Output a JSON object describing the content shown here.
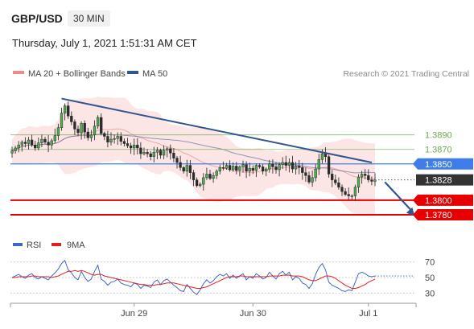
{
  "header": {
    "symbol": "GBP/USD",
    "timeframe": "30 MIN",
    "timestamp": "Thursday, July 1, 2021 1:51:31 AM CET"
  },
  "credit": "Research © 2021 Trading Central",
  "colors": {
    "bollinger": "#f08a8a",
    "ma50": "#31558f",
    "green_level": "#6aa84f",
    "blue_level": "#3f7ee8",
    "red_level": "#e60000",
    "current_label": "#333333",
    "rsi": "#3f66c9",
    "rsi_ma": "#e02020"
  },
  "chart_data": [
    {
      "type": "candlestick",
      "title": "",
      "legend": [
        {
          "name": "MA 20 + Bollinger Bands",
          "color": "#f08a8a"
        },
        {
          "name": "MA 50",
          "color": "#31558f"
        }
      ],
      "x_tick_labels": [
        "Jun 29",
        "Jun 30",
        "Jul 1"
      ],
      "ylim": [
        1.376,
        1.3965
      ],
      "levels": [
        {
          "value": 1.389,
          "label": "1.3890",
          "kind": "resistance-minor",
          "color": "#6aa84f"
        },
        {
          "value": 1.387,
          "label": "1.3870",
          "kind": "resistance-minor",
          "color": "#6aa84f"
        },
        {
          "value": 1.385,
          "label": "1.3850",
          "kind": "pivot",
          "color": "#3f7ee8"
        },
        {
          "value": 1.3828,
          "label": "1.3828",
          "kind": "last-price",
          "color": "#333333"
        },
        {
          "value": 1.38,
          "label": "1.3800",
          "kind": "support",
          "color": "#e60000"
        },
        {
          "value": 1.378,
          "label": "1.3780",
          "kind": "support",
          "color": "#e60000"
        }
      ],
      "trendline": {
        "from": {
          "bar": 15,
          "price": 1.394
        },
        "to": {
          "bar": 109,
          "price": 1.3852
        }
      },
      "projection_arrow": {
        "from": {
          "bar": 113,
          "price": 1.3825
        },
        "to": {
          "bar": 122,
          "price": 1.3778
        },
        "direction": "down"
      },
      "close": [
        1.3868,
        1.3872,
        1.3876,
        1.388,
        1.3878,
        1.3883,
        1.3876,
        1.3872,
        1.3879,
        1.3884,
        1.388,
        1.3876,
        1.3882,
        1.3889,
        1.39,
        1.392,
        1.393,
        1.3916,
        1.3908,
        1.3898,
        1.3893,
        1.3906,
        1.3894,
        1.3886,
        1.389,
        1.3902,
        1.3914,
        1.3892,
        1.3888,
        1.388,
        1.3884,
        1.3885,
        1.3888,
        1.3881,
        1.3878,
        1.3875,
        1.3872,
        1.3876,
        1.3872,
        1.3864,
        1.3866,
        1.3864,
        1.386,
        1.3866,
        1.3869,
        1.3862,
        1.3869,
        1.3871,
        1.3865,
        1.3858,
        1.3852,
        1.3845,
        1.384,
        1.3848,
        1.3838,
        1.3828,
        1.382,
        1.3822,
        1.3831,
        1.3836,
        1.383,
        1.3834,
        1.384,
        1.3845,
        1.3844,
        1.3848,
        1.3842,
        1.3847,
        1.3841,
        1.3846,
        1.3849,
        1.384,
        1.3844,
        1.3841,
        1.3848,
        1.3846,
        1.384,
        1.3843,
        1.385,
        1.3846,
        1.3842,
        1.3849,
        1.3852,
        1.3848,
        1.3852,
        1.3843,
        1.3847,
        1.3845,
        1.3838,
        1.3834,
        1.3825,
        1.3831,
        1.3843,
        1.3856,
        1.3864,
        1.386,
        1.3836,
        1.3828,
        1.3824,
        1.3818,
        1.3812,
        1.3808,
        1.3806,
        1.3806,
        1.3818,
        1.3832,
        1.3836,
        1.3834,
        1.3828,
        1.3826,
        1.3828
      ]
    },
    {
      "type": "line",
      "title": "",
      "legend": [
        {
          "name": "RSI",
          "color": "#3f66c9"
        },
        {
          "name": "9MA",
          "color": "#e02020"
        }
      ],
      "ylim": [
        22,
        78
      ],
      "y_ticks": [
        70,
        50,
        30
      ],
      "series": [
        {
          "name": "RSI",
          "values": [
            50,
            52,
            54,
            51,
            49,
            53,
            55,
            50,
            48,
            51,
            49,
            47,
            52,
            56,
            61,
            68,
            72,
            60,
            56,
            50,
            47,
            58,
            50,
            45,
            48,
            58,
            66,
            48,
            45,
            40,
            44,
            45,
            48,
            43,
            41,
            40,
            38,
            43,
            41,
            36,
            40,
            39,
            37,
            44,
            47,
            41,
            46,
            48,
            44,
            40,
            37,
            33,
            32,
            41,
            36,
            31,
            28,
            34,
            42,
            47,
            43,
            46,
            51,
            54,
            52,
            55,
            49,
            53,
            49,
            52,
            55,
            47,
            51,
            49,
            55,
            52,
            48,
            50,
            57,
            52,
            48,
            55,
            58,
            53,
            57,
            47,
            51,
            49,
            43,
            41,
            36,
            42,
            54,
            63,
            68,
            60,
            44,
            40,
            38,
            36,
            33,
            32,
            34,
            33,
            44,
            55,
            57,
            55,
            52,
            51,
            52
          ]
        },
        {
          "name": "9MA",
          "values": [
            50,
            50,
            51,
            51,
            51,
            51,
            52,
            52,
            51,
            51,
            51,
            51,
            50,
            51,
            52,
            54,
            56,
            58,
            58,
            59,
            58,
            59,
            58,
            56,
            54,
            53,
            54,
            54,
            52,
            51,
            50,
            49,
            48,
            47,
            46,
            45,
            44,
            43,
            42,
            41,
            41,
            40,
            40,
            40,
            41,
            41,
            42,
            43,
            43,
            43,
            42,
            41,
            40,
            39,
            38,
            37,
            36,
            36,
            37,
            38,
            40,
            42,
            44,
            46,
            48,
            50,
            51,
            51,
            51,
            52,
            52,
            51,
            51,
            51,
            51,
            51,
            51,
            51,
            52,
            52,
            52,
            52,
            53,
            53,
            53,
            52,
            52,
            52,
            51,
            49,
            47,
            46,
            46,
            48,
            50,
            52,
            52,
            51,
            49,
            46,
            43,
            40,
            38,
            36,
            36,
            37,
            39,
            41,
            44,
            46,
            48
          ]
        }
      ]
    }
  ]
}
